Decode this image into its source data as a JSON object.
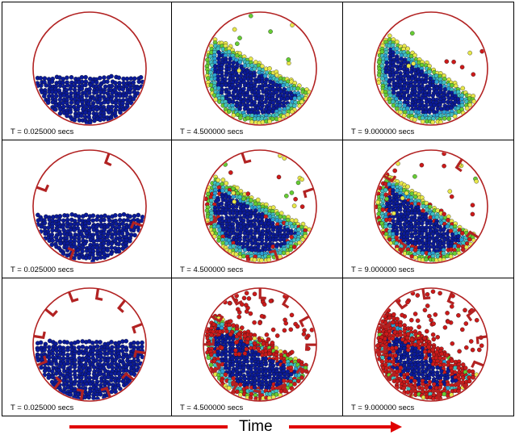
{
  "figure": {
    "time_axis_label": "Time",
    "rows": [
      {
        "lifters": 0,
        "panels": [
          {
            "time_label": "T = 0.025000 secs",
            "stage": 0
          },
          {
            "time_label": "T = 4.500000 secs",
            "stage": 1
          },
          {
            "time_label": "T = 9.000000 secs",
            "stage": 2
          }
        ]
      },
      {
        "lifters": 4,
        "panels": [
          {
            "time_label": "T = 0.025000 secs",
            "stage": 0
          },
          {
            "time_label": "T = 4.500000 secs",
            "stage": 1
          },
          {
            "time_label": "T = 9.000000 secs",
            "stage": 2
          }
        ]
      },
      {
        "lifters": 12,
        "panels": [
          {
            "time_label": "T = 0.025000 secs",
            "stage": 0
          },
          {
            "time_label": "T = 4.500000 secs",
            "stage": 1
          },
          {
            "time_label": "T = 9.000000 secs",
            "stage": 2
          }
        ]
      }
    ],
    "colors": {
      "drum": "#b22222",
      "lifter": "#b22222",
      "arrow": "#e00000",
      "particle_scale": [
        "#0a1a9a",
        "#2a9fd6",
        "#40c0c0",
        "#66cc33",
        "#e8e84a",
        "#cc1a1a"
      ]
    }
  }
}
